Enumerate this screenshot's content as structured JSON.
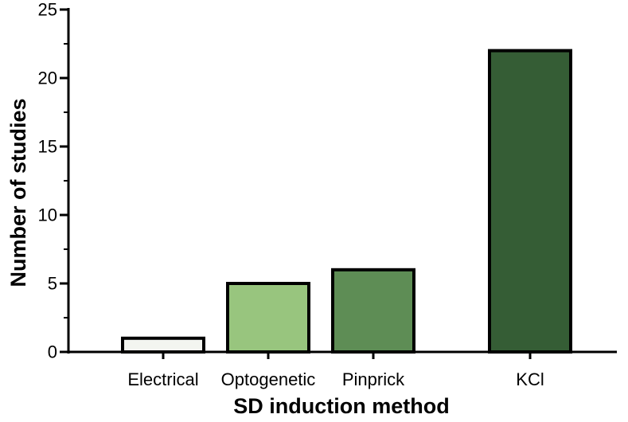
{
  "chart_data": {
    "type": "bar",
    "title": "",
    "xlabel": "SD induction method",
    "ylabel": "Number of studies",
    "categories": [
      "Electrical",
      "Optogenetic",
      "Pinprick",
      "KCl"
    ],
    "values": [
      1,
      5,
      6,
      22
    ],
    "ylim": [
      0,
      25
    ],
    "y_major_ticks": [
      0,
      5,
      10,
      15,
      20,
      25
    ],
    "y_tick_labels": [
      "0",
      "5",
      "10",
      "15",
      "20",
      "25"
    ],
    "grid": false,
    "legend": "none",
    "bar_colors": [
      "#f3f5f0",
      "#98c57e",
      "#5e8d55",
      "#355d35"
    ],
    "bar_edge_color": "#000000"
  }
}
